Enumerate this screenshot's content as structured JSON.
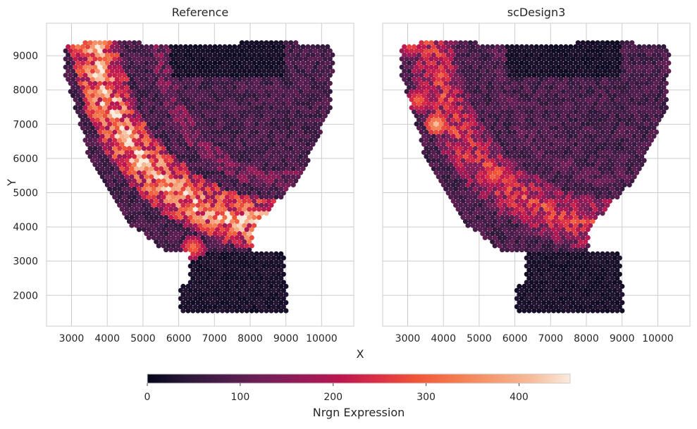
{
  "figure": {
    "shared_xlabel": "X",
    "shared_ylabel": "Y"
  },
  "chart_data": [
    {
      "type": "scatter",
      "title": "Reference",
      "xlabel": "X",
      "ylabel": "Y",
      "xlim": [
        2300,
        10900
      ],
      "ylim": [
        1100,
        9950
      ],
      "xticks": [
        3000,
        4000,
        5000,
        6000,
        7000,
        8000,
        9000,
        10000
      ],
      "yticks": [
        2000,
        3000,
        4000,
        5000,
        6000,
        7000,
        8000,
        9000
      ],
      "grid": true,
      "spot_spacing": 137,
      "color_variable": "Nrgn Expression",
      "high_band_max": 420,
      "high_band_min": 180,
      "hotspots": [
        {
          "x": 3200,
          "y": 9350,
          "value": 380
        },
        {
          "x": 3800,
          "y": 7300,
          "value": 360
        },
        {
          "x": 4500,
          "y": 6400,
          "value": 340
        },
        {
          "x": 7600,
          "y": 4200,
          "value": 330
        },
        {
          "x": 6400,
          "y": 3400,
          "value": 340
        }
      ]
    },
    {
      "type": "scatter",
      "title": "scDesign3",
      "xlabel": "X",
      "ylabel": "Y",
      "xlim": [
        2300,
        10900
      ],
      "ylim": [
        1100,
        9950
      ],
      "xticks": [
        3000,
        4000,
        5000,
        6000,
        7000,
        8000,
        9000,
        10000
      ],
      "yticks": [
        2000,
        3000,
        4000,
        5000,
        6000,
        7000,
        8000,
        9000
      ],
      "grid": true,
      "spot_spacing": 137,
      "color_variable": "Nrgn Expression",
      "high_band_max": 260,
      "high_band_min": 130,
      "hotspots": [
        {
          "x": 3100,
          "y": 9300,
          "value": 300
        },
        {
          "x": 3800,
          "y": 7000,
          "value": 420
        },
        {
          "x": 5400,
          "y": 5500,
          "value": 330
        },
        {
          "x": 3300,
          "y": 7700,
          "value": 330
        }
      ]
    }
  ],
  "colorbar": {
    "label": "Nrgn Expression",
    "min": 0,
    "max": 455,
    "ticks": [
      0,
      100,
      200,
      300,
      400
    ],
    "colormap": "rocket",
    "colors": [
      "#03051a",
      "#2b1838",
      "#4c1d4b",
      "#701f57",
      "#951b57",
      "#ba1650",
      "#dc2f45",
      "#f05538",
      "#f47a4f",
      "#f59b71",
      "#f6bc9a",
      "#faebdd"
    ]
  },
  "background": "#ffffff",
  "grid_color": "#cccccc"
}
